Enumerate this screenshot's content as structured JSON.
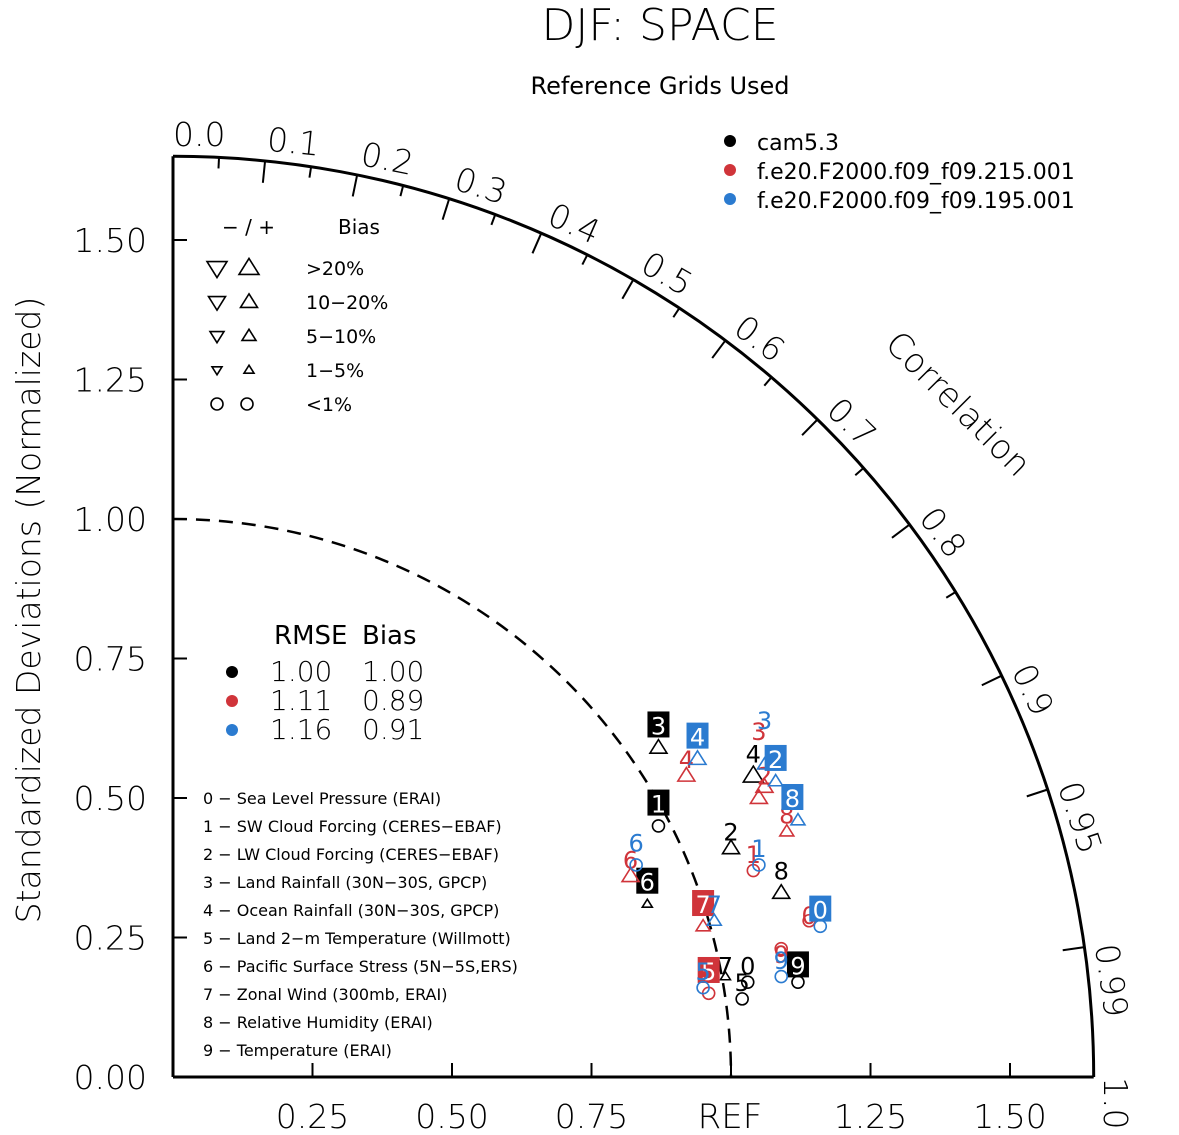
{
  "chart_data": {
    "type": "scatter",
    "subtype": "taylor-diagram",
    "title": "DJF: SPACE",
    "subtitle": "Reference Grids Used",
    "ylabel": "Standardized Deviations (Normalized)",
    "arc_label": "Correlation",
    "ref_label": "REF",
    "std_range": [
      0,
      1.65
    ],
    "y_ticks": [
      "0.00",
      "0.25",
      "0.50",
      "0.75",
      "1.00",
      "1.25",
      "1.50"
    ],
    "x_ticks": [
      "0.25",
      "0.50",
      "0.75",
      "1.25",
      "1.50"
    ],
    "x_tick_values": [
      0.25,
      0.5,
      0.75,
      1.25,
      1.5
    ],
    "correlation_ticks": [
      "0.0",
      "0.1",
      "0.2",
      "0.3",
      "0.4",
      "0.5",
      "0.6",
      "0.7",
      "0.8",
      "0.9",
      "0.95",
      "0.99",
      "1.0"
    ],
    "correlation_values": [
      0.0,
      0.1,
      0.2,
      0.3,
      0.4,
      0.5,
      0.6,
      0.7,
      0.8,
      0.9,
      0.95,
      0.99,
      1.0
    ],
    "models": [
      {
        "name": "cam5.3",
        "color": "#000000",
        "rmse": "1.00",
        "bias": "1.00"
      },
      {
        "name": "f.e20.F2000.f09_f09.215.001",
        "color": "#d0343a",
        "rmse": "1.11",
        "bias": "0.89"
      },
      {
        "name": "f.e20.F2000.f09_f09.195.001",
        "color": "#2b7bd0",
        "rmse": "1.16",
        "bias": "0.91"
      }
    ],
    "summary_legend": {
      "rmse_header": "RMSE",
      "bias_header": "Bias"
    },
    "bias_legend": {
      "header_signs": "− / +",
      "header_label": "Bias",
      "rows": [
        {
          "label": ">20%",
          "size": 1.0
        },
        {
          "label": "10−20%",
          "size": 0.85
        },
        {
          "label": "5−10%",
          "size": 0.7
        },
        {
          "label": "1−5%",
          "size": 0.5
        },
        {
          "label": "<1%",
          "size": 0,
          "circle": true
        }
      ]
    },
    "variables": [
      "0 − Sea Level Pressure (ERAI)",
      "1 − SW Cloud Forcing (CERES−EBAF)",
      "2 − LW Cloud Forcing (CERES−EBAF)",
      "3 − Land Rainfall (30N−30S, GPCP)",
      "4 − Ocean Rainfall (30N−30S, GPCP)",
      "5 − Land 2−m Temperature (Willmott)",
      "6 − Pacific Surface Stress (5N−5S,ERS)",
      "7 − Zonal Wind (300mb, ERAI)",
      "8 − Relative Humidity (ERAI)",
      "9 − Temperature (ERAI)"
    ],
    "points": [
      {
        "model": 0,
        "var": "3",
        "x": 0.87,
        "y": 0.63,
        "boxed": true,
        "marker": "tri-up",
        "mx": 0.87,
        "my": 0.59,
        "ms": 0.85
      },
      {
        "model": 0,
        "var": "1",
        "x": 0.87,
        "y": 0.49,
        "boxed": true,
        "marker": "circle",
        "mx": 0.87,
        "my": 0.45
      },
      {
        "model": 0,
        "var": "6",
        "x": 0.85,
        "y": 0.35,
        "boxed": true,
        "marker": "tri-up",
        "mx": 0.85,
        "my": 0.31,
        "ms": 0.5
      },
      {
        "model": 0,
        "var": "4",
        "x": 1.04,
        "y": 0.58,
        "boxed": false,
        "marker": "tri-up",
        "mx": 1.04,
        "my": 0.54,
        "ms": 1.0
      },
      {
        "model": 0,
        "var": "2",
        "x": 1.0,
        "y": 0.44,
        "boxed": false,
        "marker": "tri-up",
        "mx": 1.0,
        "my": 0.41,
        "ms": 0.85
      },
      {
        "model": 0,
        "var": "8",
        "x": 1.09,
        "y": 0.37,
        "boxed": false,
        "marker": "tri-up",
        "mx": 1.09,
        "my": 0.33,
        "ms": 0.85
      },
      {
        "model": 0,
        "var": "7",
        "x": 0.99,
        "y": 0.2,
        "boxed": false,
        "marker": "tri-up",
        "mx": 0.99,
        "my": 0.18,
        "ms": 0.5
      },
      {
        "model": 0,
        "var": "0",
        "x": 1.03,
        "y": 0.2,
        "boxed": false,
        "marker": "circle",
        "mx": 1.03,
        "my": 0.17
      },
      {
        "model": 0,
        "var": "5",
        "x": 1.02,
        "y": 0.17,
        "boxed": false,
        "marker": "circle",
        "mx": 1.02,
        "my": 0.14
      },
      {
        "model": 0,
        "var": "9",
        "x": 1.12,
        "y": 0.2,
        "boxed": true,
        "marker": "circle",
        "mx": 1.12,
        "my": 0.17
      },
      {
        "model": 1,
        "var": "3",
        "x": 1.05,
        "y": 0.62,
        "boxed": false,
        "marker": "tri-up",
        "mx": 1.05,
        "my": 0.5,
        "ms": 0.85
      },
      {
        "model": 1,
        "var": "4",
        "x": 0.92,
        "y": 0.57,
        "boxed": false,
        "marker": "tri-up",
        "mx": 0.92,
        "my": 0.54,
        "ms": 0.85
      },
      {
        "model": 1,
        "var": "2",
        "x": 1.06,
        "y": 0.54,
        "boxed": false,
        "marker": "tri-up",
        "mx": 1.06,
        "my": 0.52,
        "ms": 0.85
      },
      {
        "model": 1,
        "var": "8",
        "x": 1.1,
        "y": 0.47,
        "boxed": false,
        "marker": "tri-up",
        "mx": 1.1,
        "my": 0.44,
        "ms": 0.7
      },
      {
        "model": 1,
        "var": "1",
        "x": 1.04,
        "y": 0.4,
        "boxed": false,
        "marker": "circle",
        "mx": 1.04,
        "my": 0.37
      },
      {
        "model": 1,
        "var": "6",
        "x": 0.82,
        "y": 0.39,
        "boxed": false,
        "marker": "tri-up",
        "mx": 0.82,
        "my": 0.36,
        "ms": 0.85
      },
      {
        "model": 1,
        "var": "7",
        "x": 0.95,
        "y": 0.31,
        "boxed": true,
        "marker": "tri-up",
        "mx": 0.95,
        "my": 0.27,
        "ms": 0.7
      },
      {
        "model": 1,
        "var": "0",
        "x": 1.14,
        "y": 0.29,
        "boxed": false,
        "marker": "circle",
        "mx": 1.14,
        "my": 0.28
      },
      {
        "model": 1,
        "var": "5",
        "x": 0.96,
        "y": 0.19,
        "boxed": true,
        "marker": "circle",
        "mx": 0.96,
        "my": 0.15
      },
      {
        "model": 1,
        "var": "9",
        "x": 1.09,
        "y": 0.22,
        "boxed": false,
        "marker": "circle",
        "mx": 1.09,
        "my": 0.23
      },
      {
        "model": 2,
        "var": "3",
        "x": 1.06,
        "y": 0.64,
        "boxed": false,
        "marker": "tri-up",
        "mx": 1.06,
        "my": 0.56,
        "ms": 0.7
      },
      {
        "model": 2,
        "var": "4",
        "x": 0.94,
        "y": 0.61,
        "boxed": true,
        "marker": "tri-up",
        "mx": 0.94,
        "my": 0.57,
        "ms": 0.85
      },
      {
        "model": 2,
        "var": "2",
        "x": 1.08,
        "y": 0.57,
        "boxed": true,
        "marker": "tri-up",
        "mx": 1.08,
        "my": 0.53,
        "ms": 0.7
      },
      {
        "model": 2,
        "var": "8",
        "x": 1.11,
        "y": 0.5,
        "boxed": true,
        "marker": "tri-up",
        "mx": 1.12,
        "my": 0.46,
        "ms": 0.7
      },
      {
        "model": 2,
        "var": "1",
        "x": 1.05,
        "y": 0.41,
        "boxed": false,
        "marker": "circle",
        "mx": 1.05,
        "my": 0.38
      },
      {
        "model": 2,
        "var": "6",
        "x": 0.83,
        "y": 0.42,
        "boxed": false,
        "marker": "circle",
        "mx": 0.83,
        "my": 0.38
      },
      {
        "model": 2,
        "var": "7",
        "x": 0.97,
        "y": 0.31,
        "boxed": false,
        "marker": "tri-up",
        "mx": 0.97,
        "my": 0.28,
        "ms": 0.7
      },
      {
        "model": 2,
        "var": "0",
        "x": 1.16,
        "y": 0.3,
        "boxed": true,
        "marker": "circle",
        "mx": 1.16,
        "my": 0.27
      },
      {
        "model": 2,
        "var": "5",
        "x": 0.95,
        "y": 0.19,
        "boxed": false,
        "marker": "circle",
        "mx": 0.95,
        "my": 0.16
      },
      {
        "model": 2,
        "var": "9",
        "x": 1.09,
        "y": 0.21,
        "boxed": false,
        "marker": "circle",
        "mx": 1.09,
        "my": 0.18
      }
    ]
  }
}
